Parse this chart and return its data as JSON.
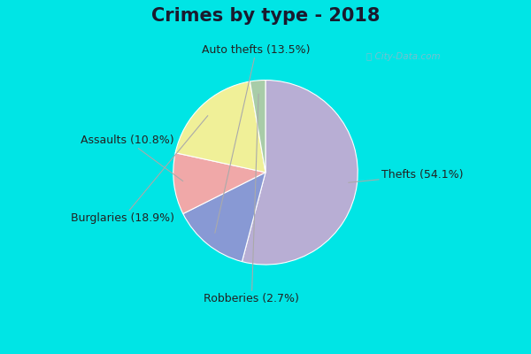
{
  "title": "Crimes by type - 2018",
  "labels": [
    "Thefts",
    "Auto thefts",
    "Assaults",
    "Burglaries",
    "Robberies"
  ],
  "values": [
    54.1,
    13.5,
    10.8,
    18.9,
    2.7
  ],
  "colors": [
    "#b8aed4",
    "#8899d4",
    "#f0a8a8",
    "#f0f098",
    "#a8cca8"
  ],
  "label_texts": [
    "Thefts (54.1%)",
    "Auto thefts (13.5%)",
    "Assaults (10.8%)",
    "Burglaries (18.9%)",
    "Robberies (2.7%)"
  ],
  "bg_color_outer": "#00e5e5",
  "bg_color_inner": "#d4eedd",
  "title_fontsize": 15,
  "label_fontsize": 9,
  "watermark": "ⓘ City-Data.com",
  "startangle": 90
}
